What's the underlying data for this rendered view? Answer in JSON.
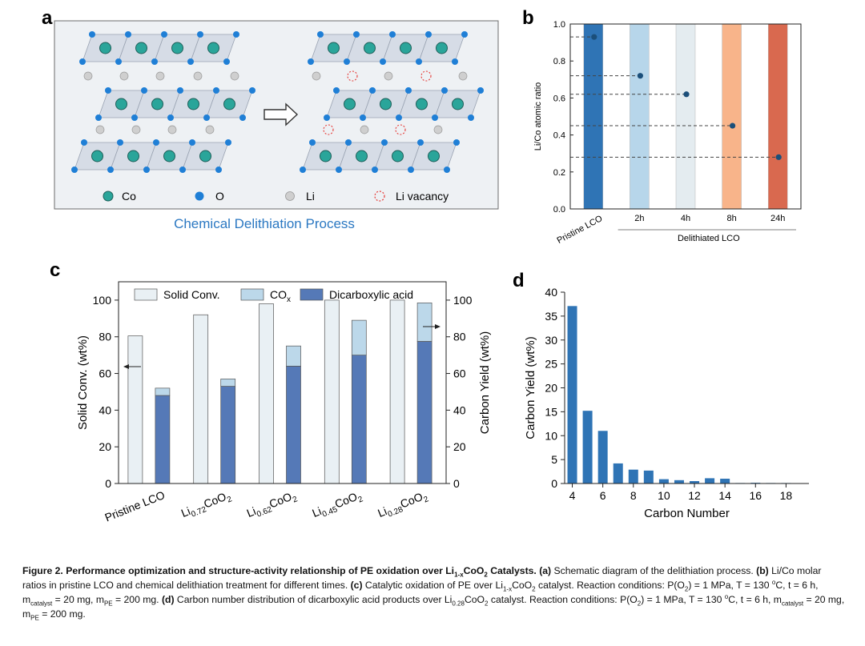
{
  "panel_labels": {
    "a": "a",
    "b": "b",
    "c": "c",
    "d": "d"
  },
  "panel_a": {
    "title": "Chemical Delithiation Process",
    "legend": [
      "Co",
      "O",
      "Li",
      "Li vacancy"
    ],
    "colors": {
      "co": "#2aa59a",
      "o": "#1f7fd6",
      "li": "#cfcfcf",
      "vacancy": "#e53935",
      "layer": "#d6dce6",
      "panel_bg": "#eef1f4"
    }
  },
  "caption": {
    "figure_label": "Figure 2.",
    "title_pre": "Performance optimization and structure-activity relationship of PE oxidation over Li",
    "title_sub": "1-x",
    "title_post": "CoO",
    "title_sub2": "2",
    "title_end": " Catalysts.",
    "a_tag": "(a)",
    "a_text": " Schematic diagram of the delithiation process.",
    "b_tag": "(b)",
    "b_text": " Li/Co molar ratios in pristine LCO and chemical delithiation treatment for different times.",
    "c_tag": "(c)",
    "c_text_pre": " Catalytic oxidation of PE over Li",
    "c_sub": "1-x",
    "c_text_mid": "CoO",
    "c_sub2": "2",
    "c_text_post": " catalyst. Reaction conditions: P(O",
    "c_sub3": "2",
    "c_text_cond": ") = 1 MPa, T = 130 ",
    "c_sup": "o",
    "c_text_cond2": "C, t = 6 h, m",
    "c_sub4": "catalyst",
    "c_text_cond3": " = 20 mg, m",
    "c_sub5": "PE",
    "c_text_cond4": " = 200 mg.",
    "d_tag": "(d)",
    "d_text_pre": " Carbon number distribution of dicarboxylic acid products over Li",
    "d_sub": "0.28",
    "d_text_mid": "CoO",
    "d_sub2": "2",
    "d_text_post": " catalyst. Reaction conditions: P(O",
    "d_sub3": "2",
    "d_text_cond": ") = 1 MPa, T = 130 ",
    "d_sup": "o",
    "d_text_cond2": "C, t = 6 h, m",
    "d_sub4": "catalyst",
    "d_text_cond3": " = 20 mg, m",
    "d_sub5": "PE",
    "d_text_cond4": " = 200 mg."
  },
  "chart_data": [
    {
      "panel": "b",
      "type": "bar",
      "ylabel": "Li/Co atomic ratio",
      "ylim": [
        0,
        1.0
      ],
      "yticks": [
        "0.0",
        "0.2",
        "0.4",
        "0.6",
        "0.8",
        "1.0"
      ],
      "categories": [
        "Pristine LCO",
        "2h",
        "4h",
        "8h",
        "24h"
      ],
      "group_label": "Delithiated LCO",
      "bar_values": [
        1.0,
        1.0,
        1.0,
        1.0,
        1.0
      ],
      "ratio_values": [
        0.93,
        0.72,
        0.62,
        0.45,
        0.28
      ],
      "colors": [
        "#2f74b5",
        "#b7d6ea",
        "#e4ecf0",
        "#f8b48a",
        "#d9694f"
      ],
      "point_color": "#1b4f7a"
    },
    {
      "panel": "c",
      "type": "bar",
      "ylabel": "Solid Conv. (wt%)",
      "y2label": "Carbon Yield (wt%)",
      "ylim": [
        0,
        110
      ],
      "yticks": [
        "0",
        "20",
        "40",
        "60",
        "80",
        "100"
      ],
      "categories": [
        {
          "pre": "Pristine LCO",
          "sub": "",
          "post": ""
        },
        {
          "pre": "Li",
          "sub": "0.72",
          "post": "CoO",
          "sub2": "2"
        },
        {
          "pre": "Li",
          "sub": "0.62",
          "post": "CoO",
          "sub2": "2"
        },
        {
          "pre": "Li",
          "sub": "0.45",
          "post": "CoO",
          "sub2": "2"
        },
        {
          "pre": "Li",
          "sub": "0.28",
          "post": "CoO",
          "sub2": "2"
        }
      ],
      "legend": [
        {
          "label": "Solid Conv.",
          "color": "#e9f0f4"
        },
        {
          "label": "CO",
          "sub": "x",
          "color": "#bcd8ea"
        },
        {
          "label": "Dicarboxylic acid",
          "color": "#5579b7"
        }
      ],
      "series": [
        {
          "name": "Solid Conv.",
          "values": [
            80.5,
            92,
            98,
            100,
            100
          ]
        },
        {
          "name": "Dicarboxylic acid",
          "values": [
            48,
            53,
            64,
            70,
            77.5
          ]
        },
        {
          "name": "CO",
          "values": [
            4,
            4,
            11,
            19,
            21
          ]
        }
      ]
    },
    {
      "panel": "d",
      "type": "bar",
      "xlabel": "Carbon Number",
      "ylabel": "Carbon Yield (wt%)",
      "ylim": [
        0,
        40
      ],
      "xlim": [
        3.5,
        19.5
      ],
      "yticks": [
        "0",
        "5",
        "10",
        "15",
        "20",
        "25",
        "30",
        "35",
        "40"
      ],
      "xticks": [
        "4",
        "6",
        "8",
        "10",
        "12",
        "14",
        "16",
        "18"
      ],
      "x": [
        4,
        5,
        6,
        7,
        8,
        9,
        10,
        11,
        12,
        13,
        14,
        15,
        16,
        17,
        18,
        19
      ],
      "values": [
        37.1,
        15.2,
        11.0,
        4.2,
        2.9,
        2.7,
        0.9,
        0.7,
        0.5,
        1.1,
        1.0,
        0.1,
        0.15,
        0.1,
        0.1,
        0.05
      ],
      "color": "#2f74b5"
    }
  ]
}
